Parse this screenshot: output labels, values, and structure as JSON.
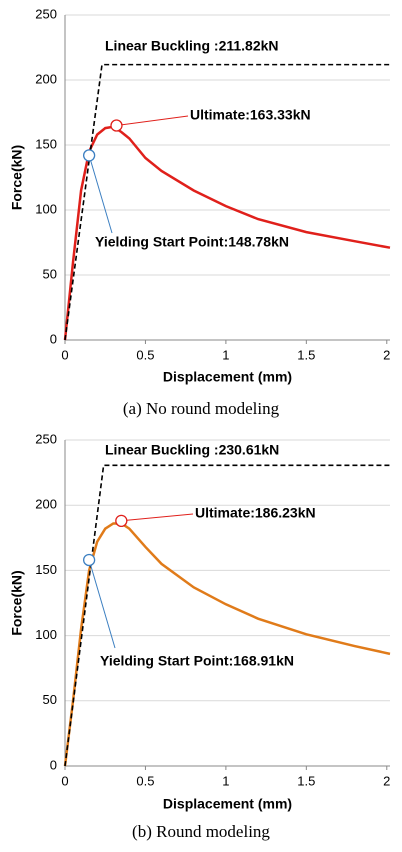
{
  "chart_data": [
    {
      "type": "line",
      "xlabel": "Displacement (mm)",
      "ylabel": "Force(kN)",
      "caption": "(a)  No round modeling",
      "xlim": [
        0,
        2.02
      ],
      "ylim": [
        0,
        250
      ],
      "xticks": [
        0,
        0.5,
        1,
        1.5,
        2
      ],
      "yticks": [
        0,
        50,
        100,
        150,
        200,
        250
      ],
      "grid": true,
      "series": [
        {
          "color": "#e0201b",
          "dash": false,
          "x": [
            0,
            0.05,
            0.1,
            0.15,
            0.2,
            0.25,
            0.3,
            0.35,
            0.4,
            0.5,
            0.6,
            0.8,
            1.0,
            1.2,
            1.5,
            1.8,
            2.02
          ],
          "values": [
            0,
            60,
            115,
            145,
            158,
            163,
            164,
            160,
            155,
            140,
            130,
            115,
            103,
            93,
            83,
            76,
            71
          ]
        },
        {
          "color": "#000000",
          "dash": true,
          "x": [
            0,
            0.23,
            2.02
          ],
          "values": [
            0,
            211.82,
            211.82
          ]
        }
      ],
      "annotations": [
        {
          "text": "Linear Buckling :211.82kN"
        },
        {
          "text": "Ultimate:163.33kN",
          "x": 0.32,
          "y": 165,
          "color": "#e0201b"
        },
        {
          "text": "Yielding Start Point:148.78kN",
          "x": 0.15,
          "y": 142,
          "color": "#3c7fc1"
        }
      ]
    },
    {
      "type": "line",
      "xlabel": "Displacement (mm)",
      "ylabel": "Force(kN)",
      "caption": "(b)  Round modeling",
      "xlim": [
        0,
        2.02
      ],
      "ylim": [
        0,
        250
      ],
      "xticks": [
        0,
        0.5,
        1,
        1.5,
        2
      ],
      "yticks": [
        0,
        50,
        100,
        150,
        200,
        250
      ],
      "grid": true,
      "series": [
        {
          "color": "#e07b1a",
          "dash": false,
          "x": [
            0,
            0.05,
            0.1,
            0.15,
            0.2,
            0.25,
            0.3,
            0.35,
            0.4,
            0.5,
            0.6,
            0.8,
            1.0,
            1.2,
            1.5,
            1.8,
            2.02
          ],
          "values": [
            0,
            50,
            105,
            150,
            172,
            182,
            186,
            186,
            182,
            168,
            155,
            137,
            124,
            113,
            101,
            92,
            86
          ]
        },
        {
          "color": "#000000",
          "dash": true,
          "x": [
            0,
            0.24,
            2.02
          ],
          "values": [
            0,
            230.61,
            230.61
          ]
        }
      ],
      "annotations": [
        {
          "text": "Linear Buckling :230.61kN"
        },
        {
          "text": "Ultimate:186.23kN",
          "x": 0.35,
          "y": 188,
          "color": "#e0201b"
        },
        {
          "text": "Yielding Start Point:168.91kN",
          "x": 0.15,
          "y": 158,
          "color": "#3c7fc1"
        }
      ]
    }
  ]
}
